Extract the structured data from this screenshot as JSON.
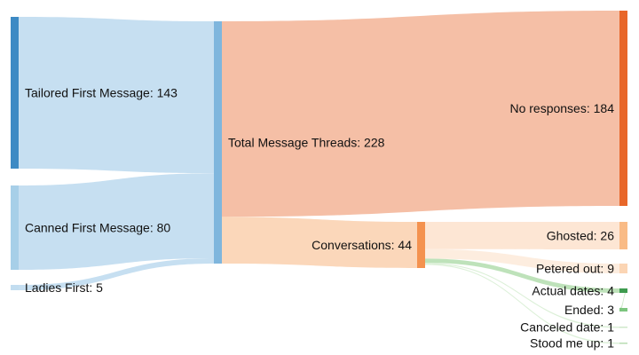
{
  "chart_data": {
    "type": "sankey",
    "nodes": [
      {
        "id": "tailored",
        "label": "Tailored First Message: 143",
        "value": 143,
        "color": "#3d8ac4"
      },
      {
        "id": "canned",
        "label": "Canned First Message: 80",
        "value": 80,
        "color": "#a7cfe8"
      },
      {
        "id": "ladies",
        "label": "Ladies First: 5",
        "value": 5,
        "color": "#c2ddf0"
      },
      {
        "id": "total",
        "label": "Total Message Threads: 228",
        "value": 228,
        "color": "#7fb6dd"
      },
      {
        "id": "noresp",
        "label": "No responses: 184",
        "value": 184,
        "color": "#e8672a"
      },
      {
        "id": "conv",
        "label": "Conversations: 44",
        "value": 44,
        "color": "#f4924f"
      },
      {
        "id": "ghosted",
        "label": "Ghosted: 26",
        "value": 26,
        "color": "#f9bb86"
      },
      {
        "id": "petered",
        "label": "Petered out: 9",
        "value": 9,
        "color": "#fbd5b4"
      },
      {
        "id": "actual",
        "label": "Actual dates: 4",
        "value": 4,
        "color": "#3e9b4f"
      },
      {
        "id": "ended",
        "label": "Ended: 3",
        "value": 3,
        "color": "#7cc57e"
      },
      {
        "id": "canceled",
        "label": "Canceled date: 1",
        "value": 1,
        "color": "#cfe8cb"
      },
      {
        "id": "stood",
        "label": "Stood me up: 1",
        "value": 1,
        "color": "#b9ddb3"
      }
    ],
    "links": [
      {
        "source": "tailored",
        "target": "total",
        "value": 143,
        "color": "#c0dcf0"
      },
      {
        "source": "canned",
        "target": "total",
        "value": 80,
        "color": "#c0dcf0"
      },
      {
        "source": "ladies",
        "target": "total",
        "value": 5,
        "color": "#c0dcf0"
      },
      {
        "source": "total",
        "target": "noresp",
        "value": 184,
        "color": "#f4b89c"
      },
      {
        "source": "total",
        "target": "conv",
        "value": 44,
        "color": "#fbd3b3"
      },
      {
        "source": "conv",
        "target": "ghosted",
        "value": 26,
        "color": "#fde3cf"
      },
      {
        "source": "conv",
        "target": "petered",
        "value": 9,
        "color": "#fdebdc"
      },
      {
        "source": "conv",
        "target": "actual",
        "value": 4,
        "color": "#b7dfb2"
      },
      {
        "source": "actual",
        "target": "ended",
        "value": 3,
        "color": "#c9e7c4"
      },
      {
        "source": "conv",
        "target": "canceled",
        "value": 1,
        "color": "#d8eed4"
      },
      {
        "source": "conv",
        "target": "stood",
        "value": 1,
        "color": "#d8eed4"
      }
    ]
  }
}
